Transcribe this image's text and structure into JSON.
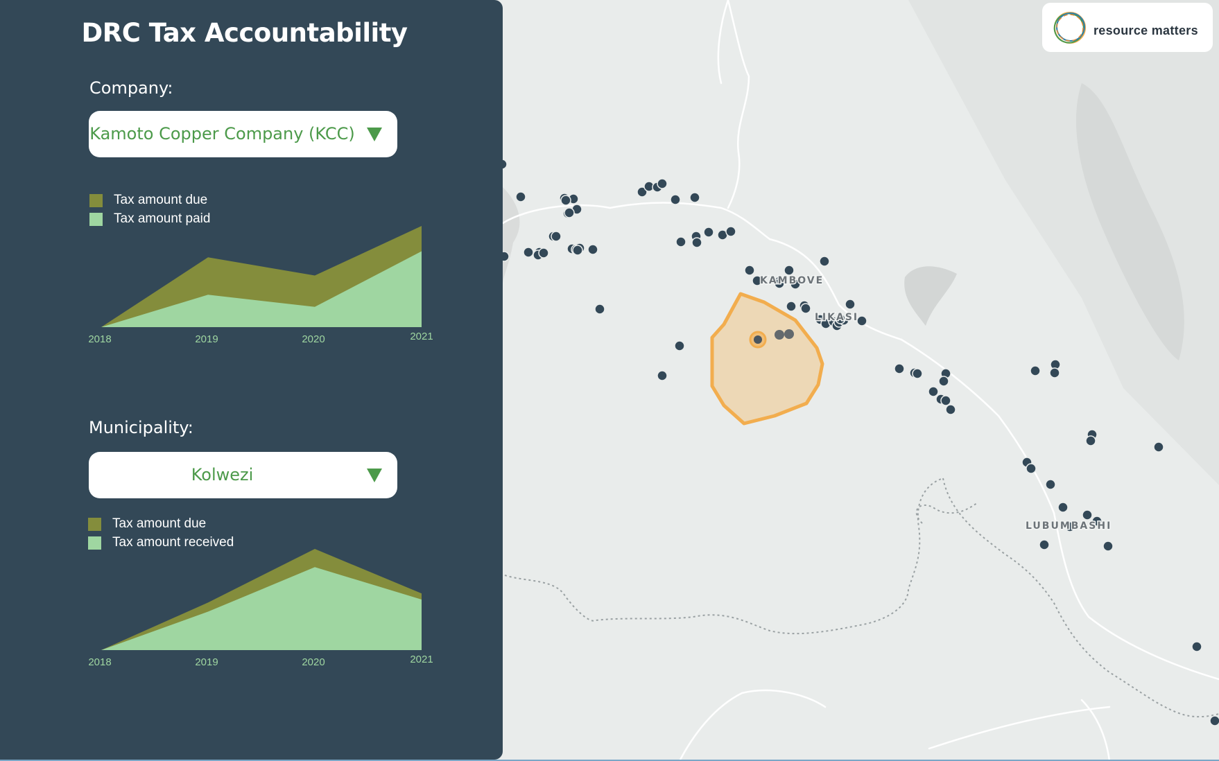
{
  "app": {
    "title": "DRC Tax Accountability"
  },
  "company": {
    "label": "Company:",
    "selected": "Kamoto Copper Company (KCC)",
    "legend": [
      "Tax amount due",
      "Tax amount paid"
    ]
  },
  "municipality": {
    "label": "Municipality:",
    "selected": "Kolwezi",
    "legend": [
      "Tax amount due",
      "Tax amount received"
    ]
  },
  "colors": {
    "due": "#848d3c",
    "paid": "#9fd6a1",
    "panel": "#334857",
    "accent": "#4c9a4a",
    "highlight": "#f2ad4e"
  },
  "map": {
    "labels": [
      "KAMBOVE",
      "LIKASI",
      "LUBUMBASHI"
    ],
    "logo_text": "resource matters",
    "logo_icon": "resource-matters-ring-logo"
  },
  "chart_data": [
    {
      "type": "area",
      "x": [
        "2018",
        "2019",
        "2020",
        "2021"
      ],
      "series": [
        {
          "name": "Tax amount due",
          "values": [
            0,
            0.69,
            0.51,
            1.0
          ]
        },
        {
          "name": "Tax amount paid",
          "values": [
            0,
            0.32,
            0.2,
            0.75
          ]
        }
      ],
      "ylim": [
        0,
        1
      ],
      "title": "",
      "xlabel": "",
      "ylabel": "",
      "legend": "top-left"
    },
    {
      "type": "area",
      "x": [
        "2018",
        "2019",
        "2020",
        "2021"
      ],
      "series": [
        {
          "name": "Tax amount due",
          "values": [
            0,
            0.47,
            1.0,
            0.56
          ]
        },
        {
          "name": "Tax amount received",
          "values": [
            0,
            0.38,
            0.82,
            0.5
          ]
        }
      ],
      "ylim": [
        0,
        1
      ],
      "title": "",
      "xlabel": "",
      "ylabel": "",
      "legend": "top-left"
    }
  ]
}
